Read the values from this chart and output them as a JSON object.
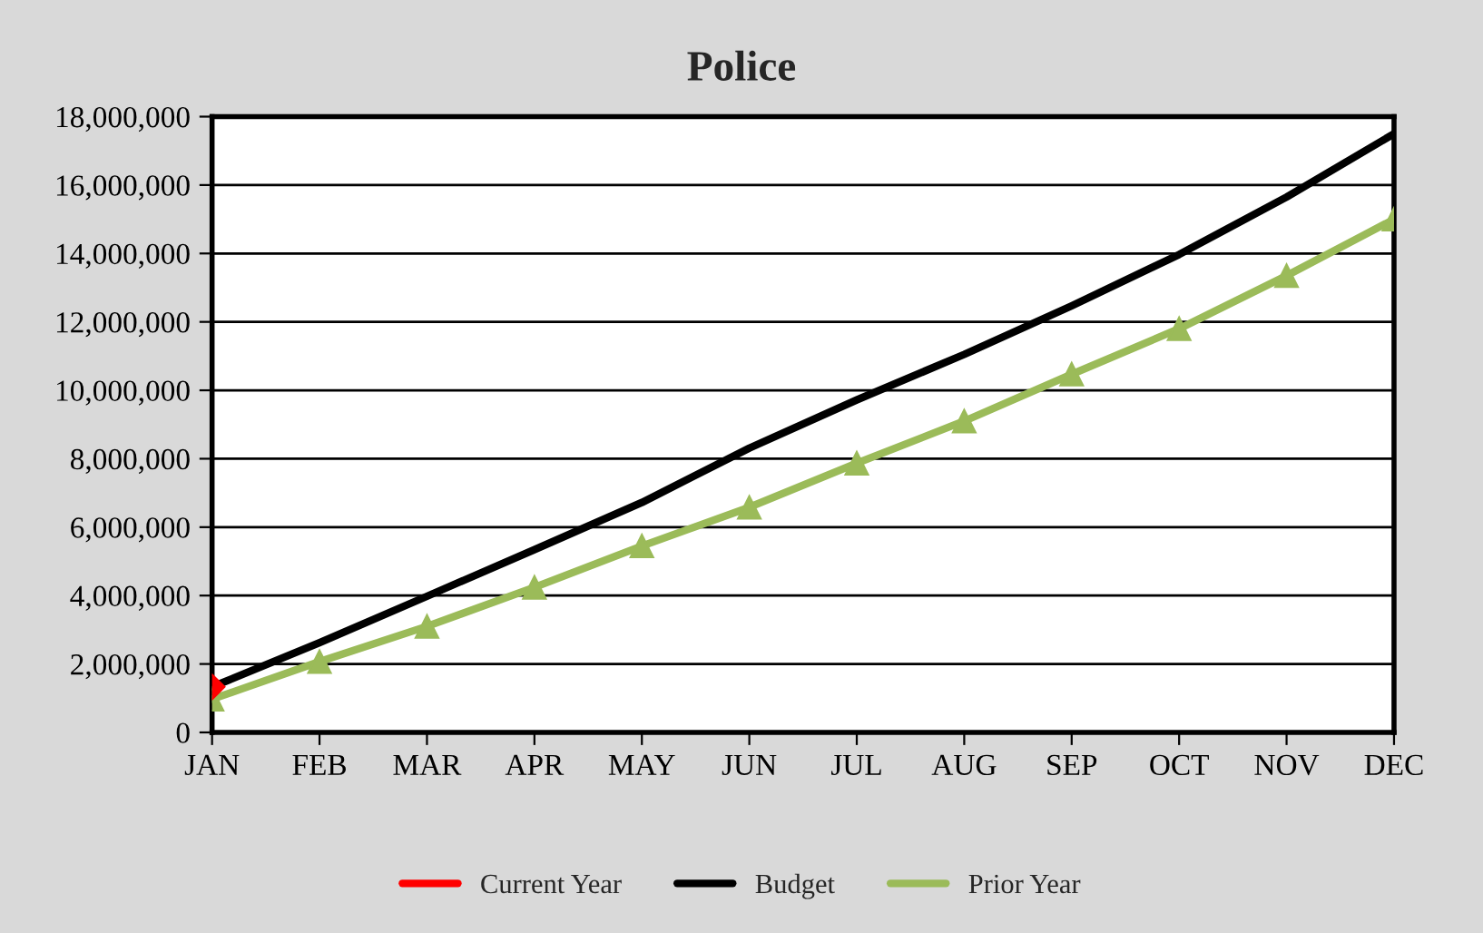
{
  "chart_data": {
    "type": "line",
    "title": "Police",
    "categories": [
      "JAN",
      "FEB",
      "MAR",
      "APR",
      "MAY",
      "JUN",
      "JUL",
      "AUG",
      "SEP",
      "OCT",
      "NOV",
      "DEC"
    ],
    "series": [
      {
        "name": "Current Year",
        "color": "#ff0000",
        "marker": "diamond",
        "values": [
          1330000,
          null,
          null,
          null,
          null,
          null,
          null,
          null,
          null,
          null,
          null,
          null
        ]
      },
      {
        "name": "Budget",
        "color": "#000000",
        "marker": "none",
        "values": [
          1330000,
          2620000,
          3980000,
          5340000,
          6720000,
          8310000,
          9720000,
          11050000,
          12470000,
          13970000,
          15650000,
          17500000
        ]
      },
      {
        "name": "Prior Year",
        "color": "#9bbb59",
        "marker": "triangle",
        "values": [
          970000,
          2070000,
          3100000,
          4240000,
          5450000,
          6580000,
          7870000,
          9100000,
          10470000,
          11800000,
          13350000,
          15000000
        ]
      }
    ],
    "ylim": [
      0,
      18000000
    ],
    "yticks": [
      0,
      {
        "value": 2000000,
        "label": "2,000,000"
      },
      {
        "value": 4000000,
        "label": "4,000,000"
      },
      {
        "value": 6000000,
        "label": "6,000,000"
      },
      {
        "value": 8000000,
        "label": "8,000,000"
      },
      {
        "value": 10000000,
        "label": "10,000,000"
      },
      {
        "value": 12000000,
        "label": "12,000,000"
      },
      {
        "value": 14000000,
        "label": "14,000,000"
      },
      {
        "value": 16000000,
        "label": "16,000,000"
      },
      {
        "value": 18000000,
        "label": "18,000,000"
      }
    ],
    "grid": "y",
    "legend": "bottom",
    "line_style": "solid"
  }
}
